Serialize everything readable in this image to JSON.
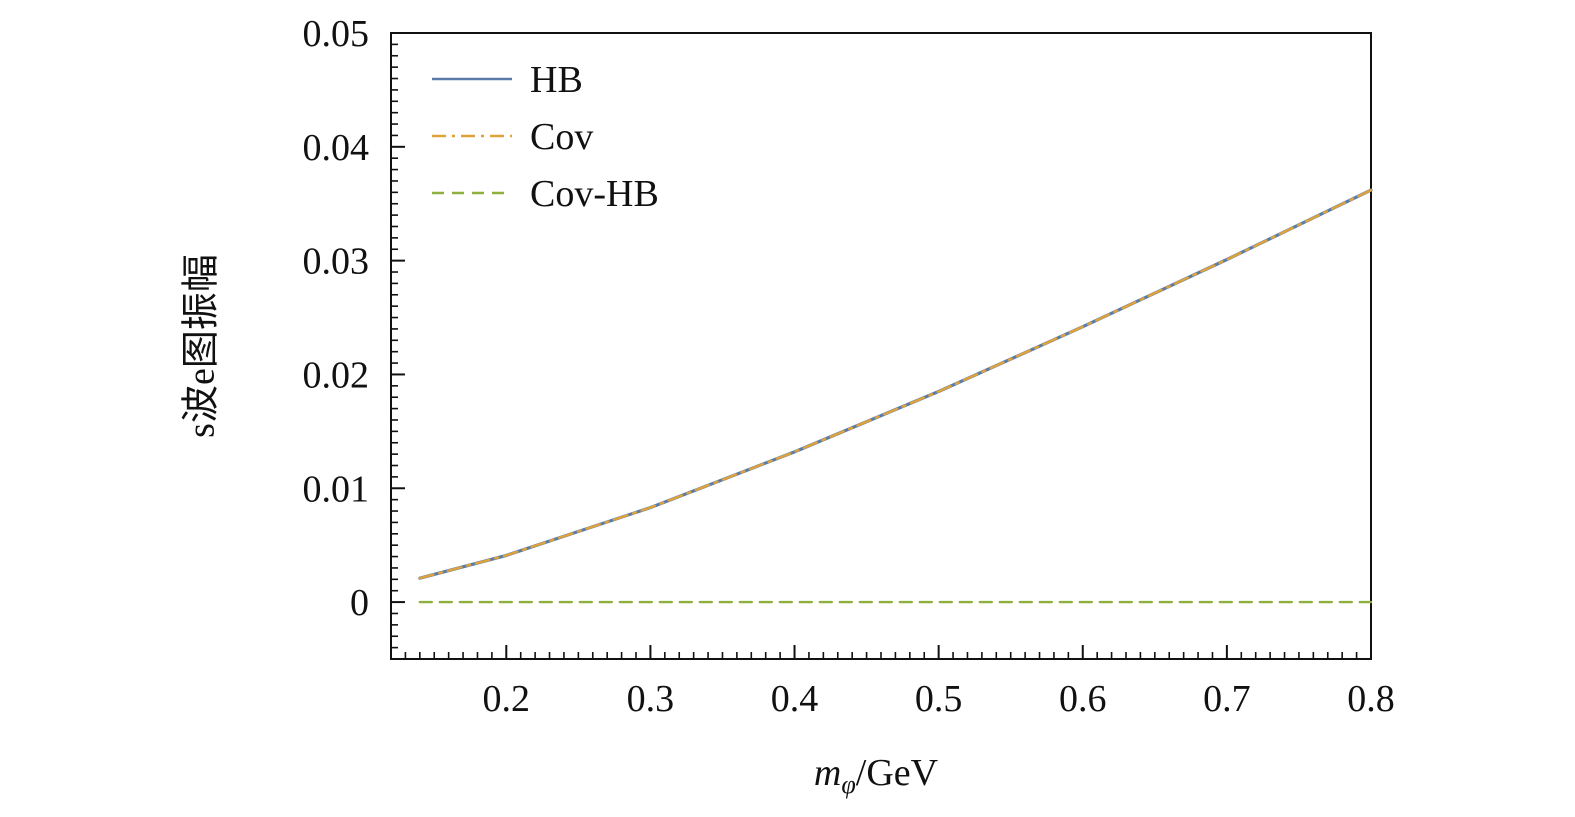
{
  "chart_data": {
    "type": "line",
    "title": "",
    "xlabel": "m_φ/GeV",
    "xlabel_main": "m",
    "xlabel_sub": "φ",
    "xlabel_unit": "/GeV",
    "ylabel": "s波e图振幅",
    "xlim": [
      0.12,
      0.8
    ],
    "ylim": [
      -0.005,
      0.05
    ],
    "xticks": [
      0.2,
      0.3,
      0.4,
      0.5,
      0.6,
      0.7,
      0.8
    ],
    "xtick_labels": [
      "0.2",
      "0.3",
      "0.4",
      "0.5",
      "0.6",
      "0.7",
      "0.8"
    ],
    "yticks": [
      0,
      0.01,
      0.02,
      0.03,
      0.04,
      0.05
    ],
    "ytick_labels": [
      "0",
      "0.01",
      "0.02",
      "0.03",
      "0.04",
      "0.05"
    ],
    "legend_position": "top-left",
    "grid": false,
    "x": [
      0.14,
      0.2,
      0.3,
      0.4,
      0.5,
      0.6,
      0.7,
      0.8
    ],
    "series": [
      {
        "name": "HB",
        "color": "#5b7ca8",
        "style": "solid",
        "values": [
          0.0021,
          0.0041,
          0.0083,
          0.0132,
          0.0185,
          0.0242,
          0.0301,
          0.0362
        ]
      },
      {
        "name": "Cov",
        "color": "#e0a33a",
        "style": "dashdot",
        "values": [
          0.0021,
          0.0041,
          0.0083,
          0.0132,
          0.0185,
          0.0242,
          0.0301,
          0.0362
        ]
      },
      {
        "name": "Cov-HB",
        "color": "#8fb03e",
        "style": "dashed",
        "values": [
          0,
          0,
          0,
          0,
          0,
          0,
          0,
          0
        ]
      }
    ]
  }
}
